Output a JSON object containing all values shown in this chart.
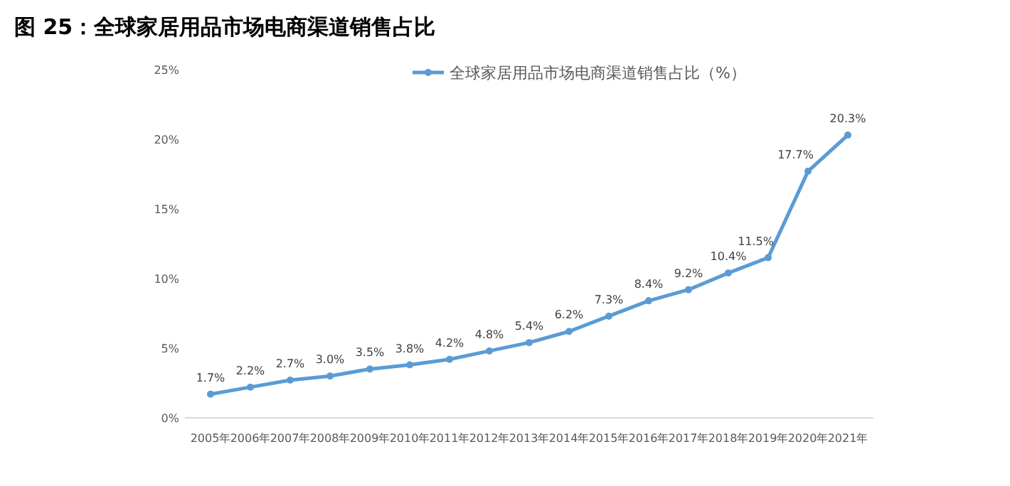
{
  "chart_data": {
    "type": "line",
    "title": "图 25：全球家居用品市场电商渠道销售占比",
    "categories": [
      "2005年",
      "2006年",
      "2007年",
      "2008年",
      "2009年",
      "2010年",
      "2011年",
      "2012年",
      "2013年",
      "2014年",
      "2015年",
      "2016年",
      "2017年",
      "2018年",
      "2019年",
      "2020年",
      "2021年"
    ],
    "series": [
      {
        "name": "全球家居用品市场电商渠道销售占比（%）",
        "color": "#5b9bd5",
        "values": [
          1.7,
          2.2,
          2.7,
          3.0,
          3.5,
          3.8,
          4.2,
          4.8,
          5.4,
          6.2,
          7.3,
          8.4,
          9.2,
          10.4,
          11.5,
          17.7,
          20.3
        ],
        "value_labels": [
          "1.7%",
          "2.2%",
          "2.7%",
          "3.0%",
          "3.5%",
          "3.8%",
          "4.2%",
          "4.8%",
          "5.4%",
          "6.2%",
          "7.3%",
          "8.4%",
          "9.2%",
          "10.4%",
          "11.5%",
          "17.7%",
          "20.3%"
        ]
      }
    ],
    "ylim": [
      0,
      25
    ],
    "yticks": [
      {
        "value": 0,
        "label": "0%"
      },
      {
        "value": 5,
        "label": "5%"
      },
      {
        "value": 10,
        "label": "10%"
      },
      {
        "value": 15,
        "label": "15%"
      },
      {
        "value": 20,
        "label": "20%"
      },
      {
        "value": 25,
        "label": "25%"
      }
    ],
    "grid": false,
    "legend": "top",
    "marker": "circle",
    "line_style": "solid"
  }
}
